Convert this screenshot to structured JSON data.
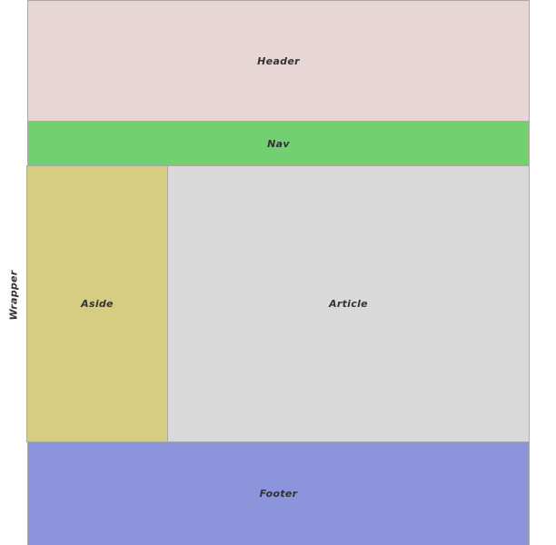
{
  "labels": {
    "wrapper": "Wrapper",
    "header": "Header",
    "nav": "Nav",
    "aside": "Aside",
    "article": "Article",
    "footer": "Footer"
  },
  "colors": {
    "header": "#e8d6d6",
    "nav": "#72cf72",
    "aside": "#d6cd82",
    "article": "#d9d9d9",
    "footer": "#8c95dc",
    "text": "#333333"
  }
}
